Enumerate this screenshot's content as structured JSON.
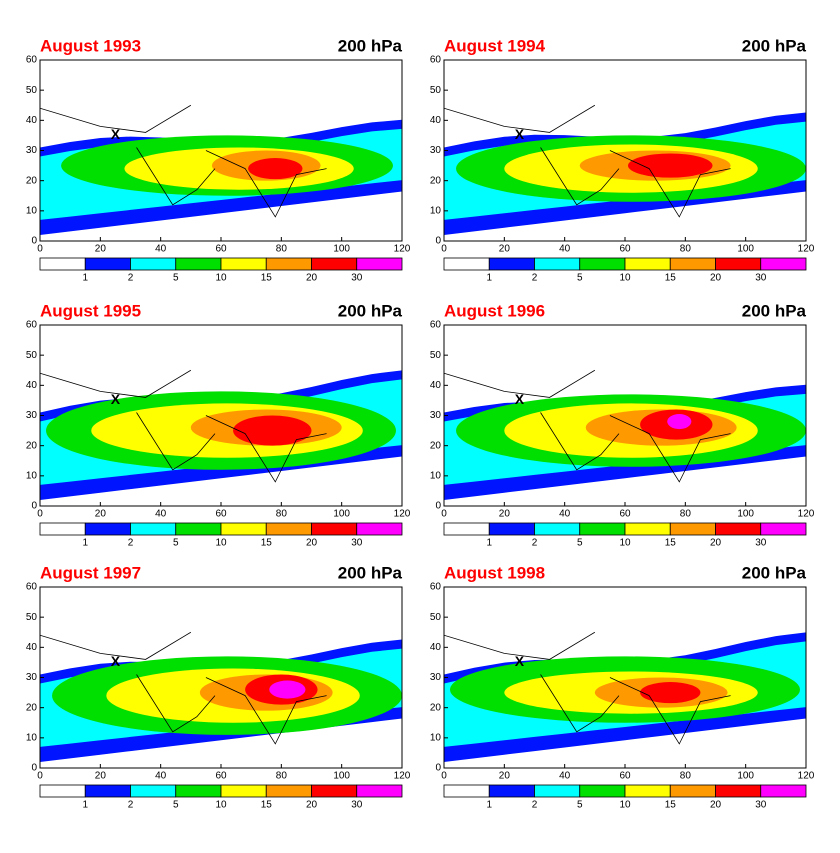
{
  "panels": [
    {
      "title": "August 1993",
      "level": "200 hPa",
      "marker": "X"
    },
    {
      "title": "August 1994",
      "level": "200 hPa",
      "marker": "X"
    },
    {
      "title": "August 1995",
      "level": "200 hPa",
      "marker": "X"
    },
    {
      "title": "August 1996",
      "level": "200 hPa",
      "marker": "X"
    },
    {
      "title": "August 1997",
      "level": "200 hPa",
      "marker": "X"
    },
    {
      "title": "August 1998",
      "level": "200 hPa",
      "marker": "X"
    }
  ],
  "x_ticks": [
    "0",
    "20",
    "40",
    "60",
    "80",
    "100",
    "120"
  ],
  "y_ticks": [
    "0",
    "10",
    "20",
    "30",
    "40",
    "50",
    "60"
  ],
  "colorbar": {
    "labels": [
      "1",
      "2",
      "5",
      "10",
      "15",
      "20",
      "30"
    ],
    "colors": [
      "#ffffff",
      "#0014ff",
      "#00ffff",
      "#00e000",
      "#ffff00",
      "#ff9900",
      "#ff0000",
      "#ff00ff"
    ]
  }
}
